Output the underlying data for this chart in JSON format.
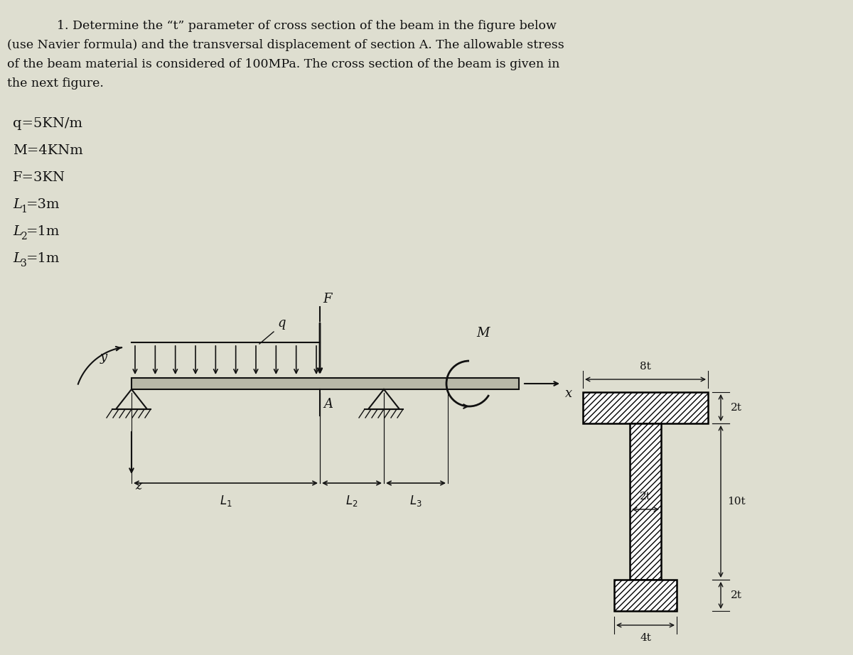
{
  "bg_color": "#deded0",
  "title_line1": "1. Determine the “t” parameter of cross section of the beam in the figure below",
  "title_line2": "(use Navier formula) and the transversal displacement of section A. The allowable stress",
  "title_line3": "of the beam material is considered of 100MPa. The cross section of the beam is given in",
  "title_line4": "the next figure.",
  "params": [
    "q=5KN/m",
    "M=4KNm",
    "F=3KN",
    "L1=3m",
    "L2=1m",
    "L3=1m"
  ],
  "text_color": "#111111",
  "line_color": "#111111"
}
